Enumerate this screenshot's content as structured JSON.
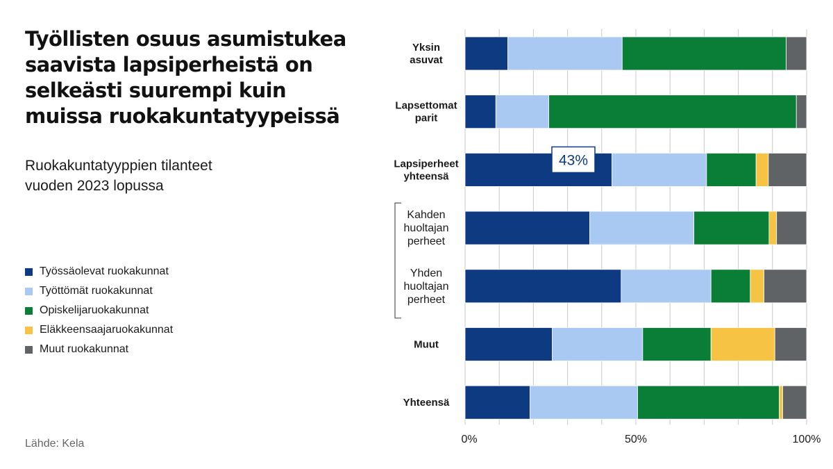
{
  "title": "Työllisten osuus asumistukea saavista lapsiperheistä on selkeästi suurempi kuin muissa ruokakuntatyypeissä",
  "subtitle_lines": [
    "Ruokakuntatyyppien tilanteet",
    "vuoden 2023 lopussa"
  ],
  "source": "Lähde: Kela",
  "chart_data": {
    "type": "bar",
    "orientation": "horizontal",
    "stacked": true,
    "categories": [
      [
        "Yksin",
        "asuvat"
      ],
      [
        "Lapsettomat",
        "parit"
      ],
      [
        "Lapsiperheet",
        "yhteensä"
      ],
      [
        "Kahden",
        "huoltajan",
        "perheet"
      ],
      [
        "Yhden",
        "huoltajan",
        "perheet"
      ],
      [
        "Muut"
      ],
      [
        "Yhteensä"
      ]
    ],
    "category_is_subgroup": [
      false,
      false,
      false,
      true,
      true,
      false,
      false
    ],
    "series": [
      {
        "name": "Työssäolevat ruokakunnat",
        "color": "#0d3a80",
        "values": [
          12.5,
          9,
          43,
          36.5,
          45.7,
          25.5,
          19
        ]
      },
      {
        "name": "Työttömät ruokakunnat",
        "color": "#a9c9f2",
        "values": [
          33.5,
          15.5,
          27.7,
          30.5,
          26.3,
          26.5,
          31.5
        ]
      },
      {
        "name": "Opiskelijaruokakunnat",
        "color": "#0a7d36",
        "values": [
          48,
          72.5,
          14.5,
          22,
          11.5,
          20,
          41.5
        ]
      },
      {
        "name": "Eläkkeensaajaruokakunnat",
        "color": "#f6c344",
        "values": [
          0,
          0,
          3.6,
          2.2,
          4,
          18.7,
          1
        ]
      },
      {
        "name": "Muut ruokakunnat",
        "color": "#5f6366",
        "values": [
          6,
          3,
          11.2,
          8.8,
          12.5,
          9.3,
          7
        ]
      }
    ],
    "xlim": [
      0,
      100
    ],
    "x_ticks": [
      0,
      50,
      100
    ],
    "x_tick_labels": [
      "0%",
      "50%",
      "100%"
    ],
    "gridlines_every": 10,
    "annotation": {
      "category_index": 2,
      "series_index": 0,
      "text": "43%"
    },
    "legend_position": "left"
  }
}
